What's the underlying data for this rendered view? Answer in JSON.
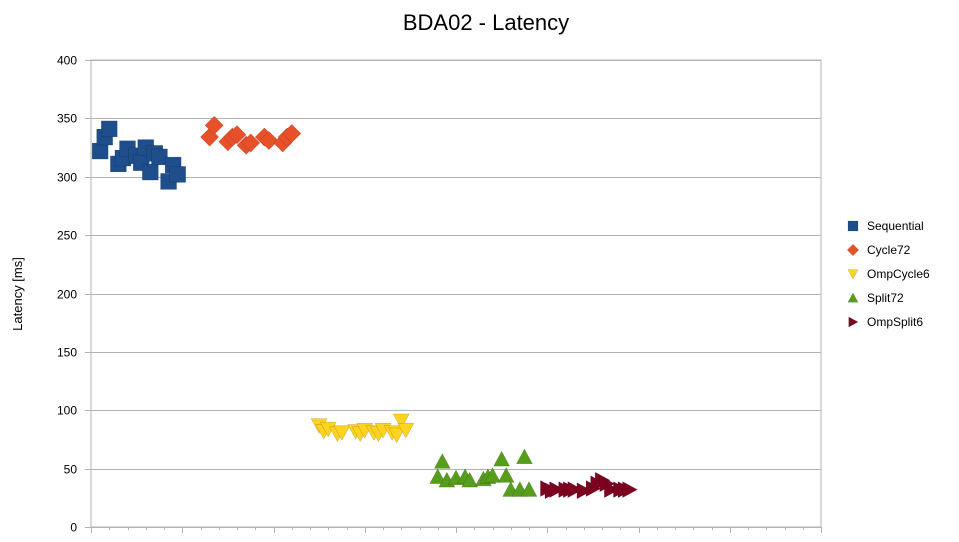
{
  "chart_data": {
    "type": "scatter",
    "title": "BDA02 - Latency",
    "xlabel": "",
    "ylabel": "Latency [ms]",
    "ylim": [
      0,
      400
    ],
    "yticks": [
      0,
      50,
      100,
      150,
      200,
      250,
      300,
      350,
      400
    ],
    "xlim": [
      0,
      80
    ],
    "grid": true,
    "legend_position": "right",
    "series": [
      {
        "name": "Sequential",
        "color": "#1f4e8c",
        "marker": "square",
        "points": [
          [
            1,
            322
          ],
          [
            1.5,
            334
          ],
          [
            2,
            341
          ],
          [
            3,
            311
          ],
          [
            3.5,
            316
          ],
          [
            4,
            324
          ],
          [
            5,
            318
          ],
          [
            5.5,
            312
          ],
          [
            6,
            325
          ],
          [
            6.5,
            304
          ],
          [
            7,
            320
          ],
          [
            7.5,
            317
          ],
          [
            8.5,
            296
          ],
          [
            9,
            310
          ],
          [
            9.5,
            302
          ]
        ]
      },
      {
        "name": "Cycle72",
        "color": "#e8502a",
        "marker": "diamond",
        "points": [
          [
            13,
            334
          ],
          [
            13.5,
            344
          ],
          [
            15,
            330
          ],
          [
            15.5,
            334
          ],
          [
            16,
            336
          ],
          [
            17,
            327
          ],
          [
            17.5,
            329
          ],
          [
            19,
            334
          ],
          [
            19.5,
            331
          ],
          [
            21,
            329
          ],
          [
            21.5,
            334
          ],
          [
            22,
            337
          ]
        ]
      },
      {
        "name": "OmpCycle6",
        "color": "#ffd320",
        "marker": "triangle-down",
        "points": [
          [
            25,
            87
          ],
          [
            25.5,
            82
          ],
          [
            26,
            84
          ],
          [
            27,
            80
          ],
          [
            27.5,
            81
          ],
          [
            29,
            82
          ],
          [
            29.5,
            80
          ],
          [
            30,
            83
          ],
          [
            31,
            81
          ],
          [
            31.5,
            80
          ],
          [
            32,
            83
          ],
          [
            33,
            81
          ],
          [
            33.5,
            79
          ],
          [
            34,
            91
          ],
          [
            34.5,
            83
          ]
        ]
      },
      {
        "name": "Split72",
        "color": "#579d1c",
        "marker": "triangle-up",
        "points": [
          [
            38,
            43
          ],
          [
            38.5,
            56
          ],
          [
            39,
            40
          ],
          [
            40,
            42
          ],
          [
            41,
            43
          ],
          [
            41.5,
            40
          ],
          [
            43,
            41
          ],
          [
            43.5,
            43
          ],
          [
            44,
            44
          ],
          [
            45,
            58
          ],
          [
            45.5,
            44
          ],
          [
            46,
            32
          ],
          [
            47,
            32
          ],
          [
            47.5,
            60
          ],
          [
            48,
            32
          ]
        ]
      },
      {
        "name": "OmpSplit6",
        "color": "#7e0021",
        "marker": "triangle-right",
        "points": [
          [
            50,
            33
          ],
          [
            50.5,
            31
          ],
          [
            51,
            32
          ],
          [
            52,
            32
          ],
          [
            52.5,
            32
          ],
          [
            53,
            32
          ],
          [
            54,
            31
          ],
          [
            55,
            33
          ],
          [
            55.5,
            37
          ],
          [
            56,
            40
          ],
          [
            56.5,
            37
          ],
          [
            57,
            32
          ],
          [
            58,
            32
          ],
          [
            58.5,
            32
          ],
          [
            59,
            32
          ]
        ]
      }
    ]
  }
}
